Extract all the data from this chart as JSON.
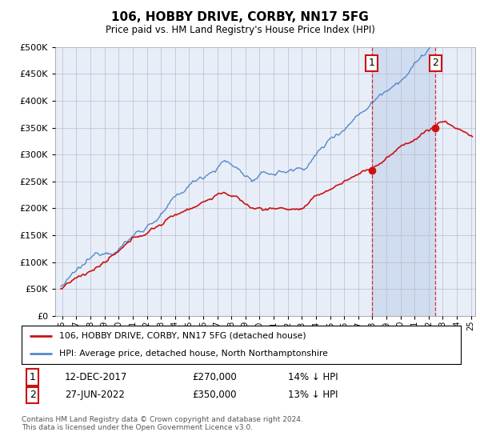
{
  "title": "106, HOBBY DRIVE, CORBY, NN17 5FG",
  "subtitle": "Price paid vs. HM Land Registry's House Price Index (HPI)",
  "ytick_values": [
    0,
    50000,
    100000,
    150000,
    200000,
    250000,
    300000,
    350000,
    400000,
    450000,
    500000
  ],
  "ylim": [
    0,
    500000
  ],
  "xlim": [
    1995.5,
    2025.3
  ],
  "hpi_color": "#5588cc",
  "price_color": "#cc1111",
  "vline_color": "#cc1111",
  "background_color": "#ffffff",
  "plot_bg_color": "#e8eef8",
  "shade_color": "#d0dcf0",
  "grid_color": "#bbbbcc",
  "t1_year": 2017.96,
  "t2_year": 2022.49,
  "t1_price": 270000,
  "t2_price": 350000,
  "legend_line1": "106, HOBBY DRIVE, CORBY, NN17 5FG (detached house)",
  "legend_line2": "HPI: Average price, detached house, North Northamptonshire",
  "footnote": "Contains HM Land Registry data © Crown copyright and database right 2024.\nThis data is licensed under the Open Government Licence v3.0.",
  "table_row1": [
    "1",
    "12-DEC-2017",
    "£270,000",
    "14% ↓ HPI"
  ],
  "table_row2": [
    "2",
    "27-JUN-2022",
    "£350,000",
    "13% ↓ HPI"
  ]
}
